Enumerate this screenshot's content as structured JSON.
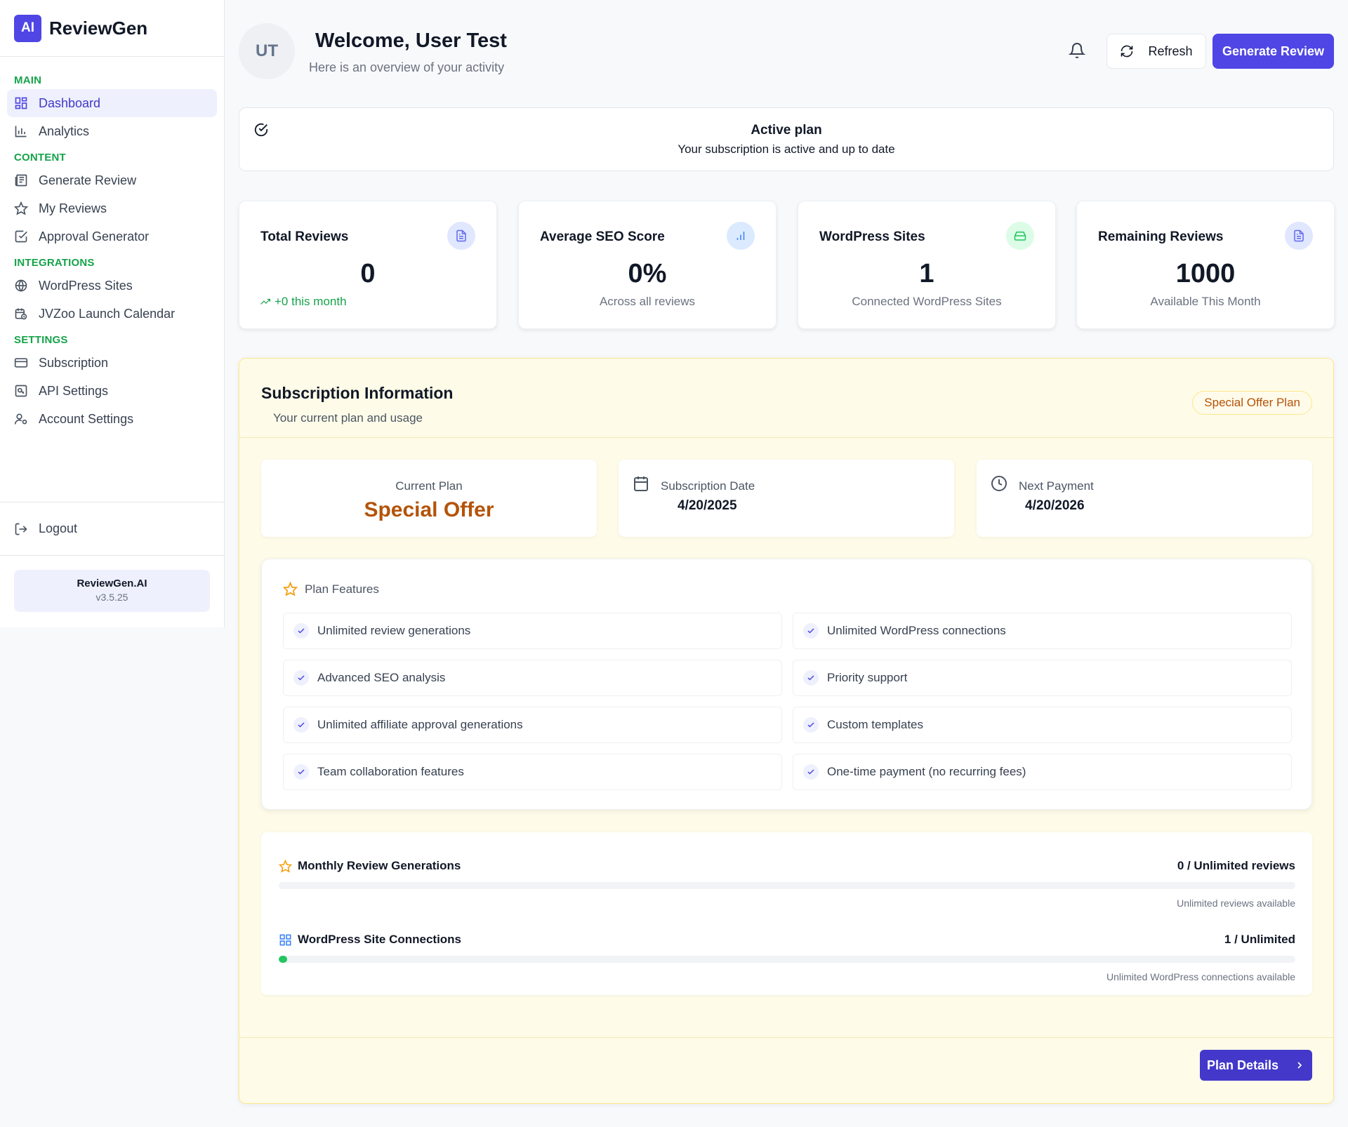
{
  "brand": {
    "logo_text": "AI",
    "name": "ReviewGen"
  },
  "sidebar": {
    "sections": [
      {
        "label": "MAIN",
        "items": [
          {
            "label": "Dashboard",
            "icon": "grid-icon",
            "active": true
          },
          {
            "label": "Analytics",
            "icon": "bar-chart-icon"
          }
        ]
      },
      {
        "label": "CONTENT",
        "items": [
          {
            "label": "Generate Review",
            "icon": "newspaper-icon"
          },
          {
            "label": "My Reviews",
            "icon": "star-icon"
          },
          {
            "label": "Approval Generator",
            "icon": "check-square-icon"
          }
        ]
      },
      {
        "label": "INTEGRATIONS",
        "items": [
          {
            "label": "WordPress Sites",
            "icon": "globe-icon"
          },
          {
            "label": "JVZoo Launch Calendar",
            "icon": "calendar-clock-icon"
          }
        ]
      },
      {
        "label": "SETTINGS",
        "items": [
          {
            "label": "Subscription",
            "icon": "credit-card-icon"
          },
          {
            "label": "API Settings",
            "icon": "key-icon"
          },
          {
            "label": "Account Settings",
            "icon": "user-cog-icon"
          }
        ]
      }
    ],
    "logout_label": "Logout",
    "app_name": "ReviewGen.AI",
    "version": "v3.5.25"
  },
  "header": {
    "avatar_initials": "UT",
    "title": "Welcome, User Test",
    "subtitle": "Here is an overview of your activity",
    "refresh_label": "Refresh",
    "generate_label": "Generate Review"
  },
  "active_plan": {
    "title": "Active plan",
    "description": "Your subscription is active and up to date"
  },
  "stats": [
    {
      "label": "Total Reviews",
      "value": "0",
      "sub": "+0 this month",
      "icon": "file-text-icon",
      "icon_bg": "#e0e7ff",
      "icon_color": "#6366f1"
    },
    {
      "label": "Average SEO Score",
      "value": "0%",
      "sub": "Across all reviews",
      "icon": "bar-chart-icon",
      "icon_bg": "#dbeafe",
      "icon_color": "#3b82f6"
    },
    {
      "label": "WordPress Sites",
      "value": "1",
      "sub": "Connected WordPress Sites",
      "icon": "hard-drive-icon",
      "icon_bg": "#dcfce7",
      "icon_color": "#22c55e"
    },
    {
      "label": "Remaining Reviews",
      "value": "1000",
      "sub": "Available This Month",
      "icon": "file-text-icon",
      "icon_bg": "#e0e7ff",
      "icon_color": "#6366f1"
    }
  ],
  "subscription": {
    "title": "Subscription Information",
    "subtitle": "Your current plan and usage",
    "badge": "Special Offer Plan",
    "current_plan_label": "Current Plan",
    "current_plan_value": "Special Offer",
    "subscription_date_label": "Subscription Date",
    "subscription_date_value": "4/20/2025",
    "next_payment_label": "Next Payment",
    "next_payment_value": "4/20/2026",
    "features_title": "Plan Features",
    "features": [
      "Unlimited review generations",
      "Unlimited WordPress connections",
      "Advanced SEO analysis",
      "Priority support",
      "Unlimited affiliate approval generations",
      "Custom templates",
      "Team collaboration features",
      "One-time payment (no recurring fees)"
    ],
    "usage": [
      {
        "label": "Monthly Review Generations",
        "value": "0 / Unlimited reviews",
        "note": "Unlimited reviews available",
        "fill_fraction": 0,
        "icon": "star-icon"
      },
      {
        "label": "WordPress Site Connections",
        "value": "1 / Unlimited",
        "note": "Unlimited WordPress connections available",
        "fill_fraction": 0.008,
        "icon": "grid-icon"
      }
    ],
    "plan_details_label": "Plan Details"
  }
}
